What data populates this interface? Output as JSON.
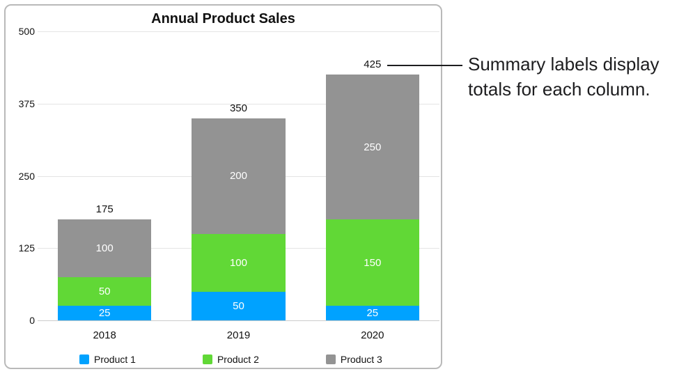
{
  "annotation": {
    "text": "Summary labels display totals for each column.",
    "lines": [
      "Summary labels display",
      "totals for each column."
    ]
  },
  "chart_data": {
    "type": "bar",
    "stacked": true,
    "title": "Annual Product Sales",
    "categories": [
      "2018",
      "2019",
      "2020"
    ],
    "series": [
      {
        "name": "Product 1",
        "color": "#00A2FF",
        "values": [
          25,
          50,
          25
        ]
      },
      {
        "name": "Product 2",
        "color": "#61D836",
        "values": [
          50,
          100,
          150
        ]
      },
      {
        "name": "Product 3",
        "color": "#939393",
        "values": [
          100,
          200,
          250
        ]
      }
    ],
    "totals": [
      175,
      350,
      425
    ],
    "ylim": [
      0,
      500
    ],
    "yticks": [
      500,
      375,
      250,
      125,
      0
    ],
    "grid": true,
    "legend_position": "bottom"
  }
}
